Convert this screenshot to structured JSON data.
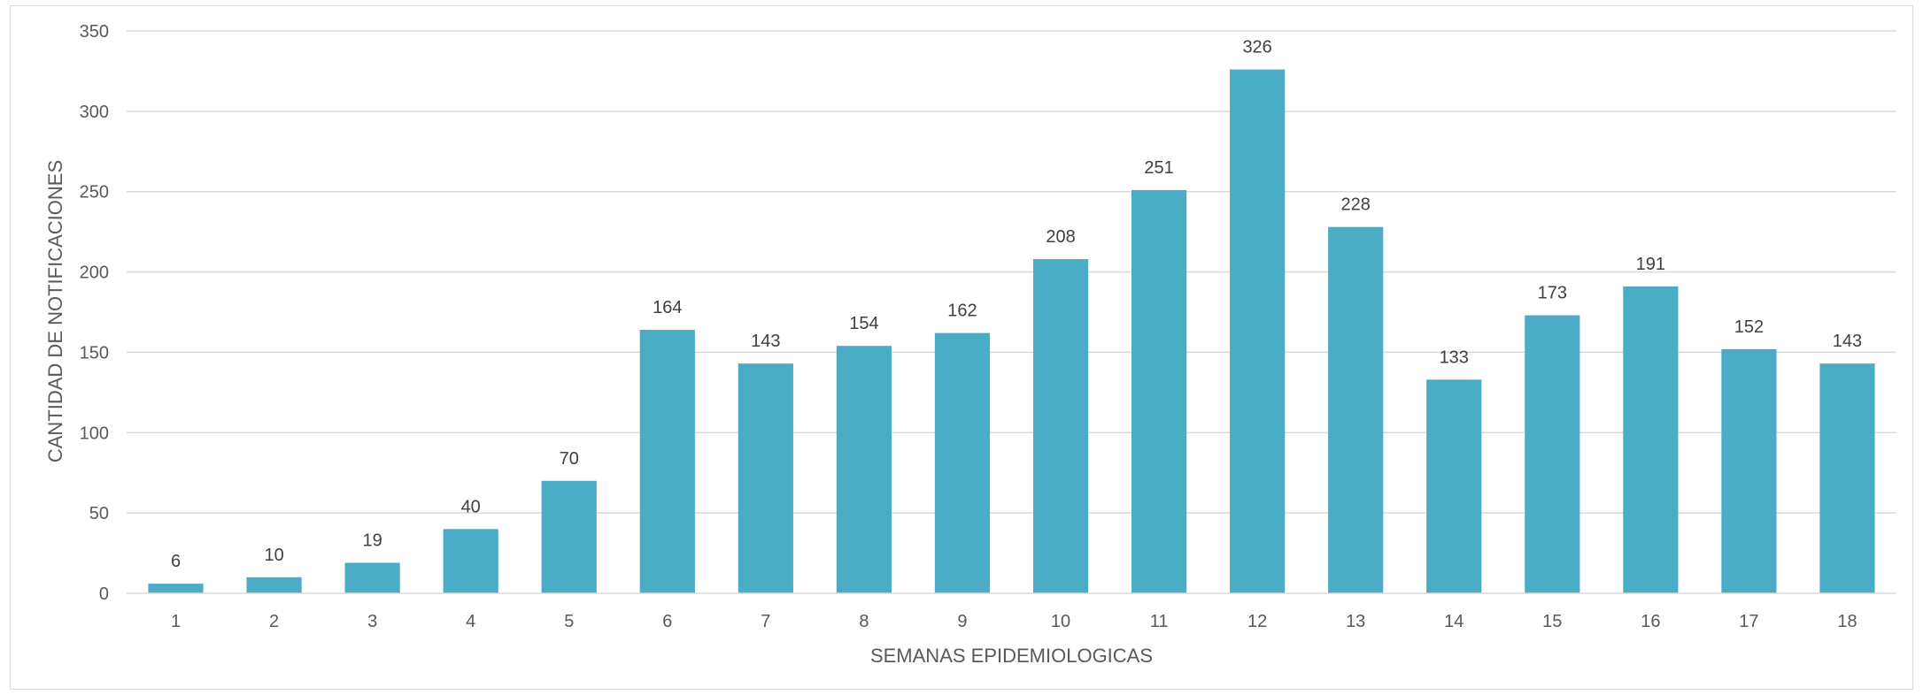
{
  "chart_data": {
    "type": "bar",
    "title": "",
    "xlabel": "SEMANAS EPIDEMIOLOGICAS",
    "ylabel": "CANTIDAD DE NOTIFICACIONES",
    "categories": [
      "1",
      "2",
      "3",
      "4",
      "5",
      "6",
      "7",
      "8",
      "9",
      "10",
      "11",
      "12",
      "13",
      "14",
      "15",
      "16",
      "17",
      "18"
    ],
    "values": [
      6,
      10,
      19,
      40,
      70,
      164,
      143,
      154,
      162,
      208,
      251,
      326,
      228,
      133,
      173,
      191,
      152,
      143
    ],
    "ylim": [
      0,
      350
    ],
    "yticks": [
      0,
      50,
      100,
      150,
      200,
      250,
      300,
      350
    ],
    "grid": true,
    "data_labels": true,
    "bar_color": "#4BACC6",
    "grid_color": "#d9d9d9"
  }
}
